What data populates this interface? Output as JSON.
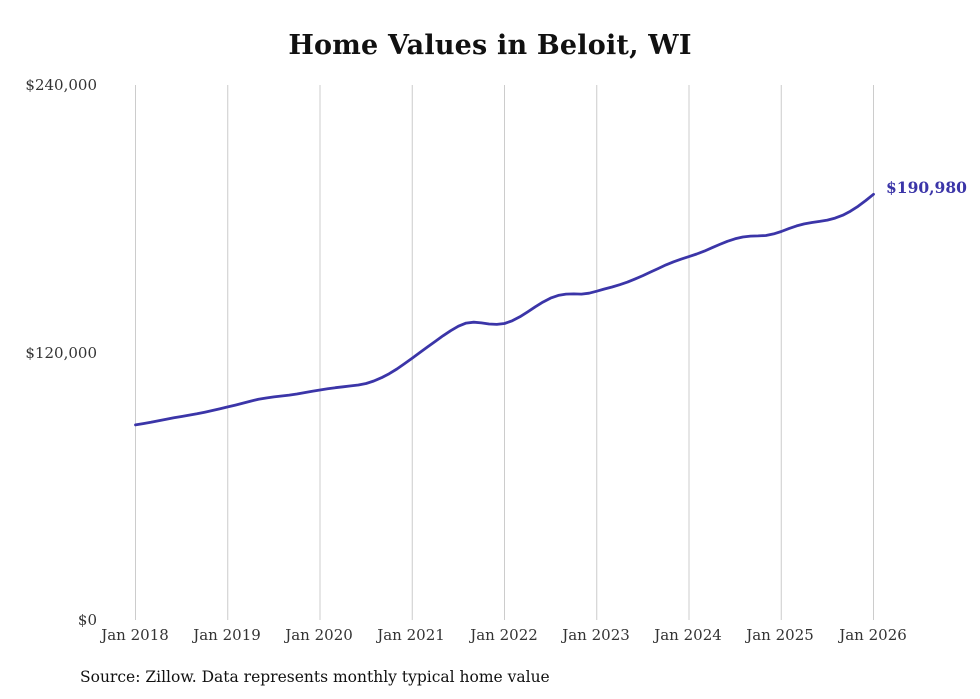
{
  "title": "Home Values in Beloit, WI",
  "source_note": "Source: Zillow. Data represents monthly typical home value",
  "colors": {
    "line": "#3b35a8",
    "grid": "#cccccc",
    "text": "#333333",
    "title": "#111111"
  },
  "chart_data": {
    "type": "line",
    "title": "Home Values in Beloit, WI",
    "xlabel": "",
    "ylabel": "",
    "ylim": [
      0,
      240000
    ],
    "grid": "vertical-only",
    "legend": "none",
    "y_ticks": [
      {
        "value": 240000,
        "label": "$240,000"
      },
      {
        "value": 120000,
        "label": "$120,000"
      },
      {
        "value": 0,
        "label": "$0"
      }
    ],
    "x_ticks": [
      "Jan 2018",
      "Jan 2019",
      "Jan 2020",
      "Jan 2021",
      "Jan 2022",
      "Jan 2023",
      "Jan 2024",
      "Jan 2025",
      "Jan 2026"
    ],
    "end_label": {
      "text": "$190,980",
      "value": 190980
    },
    "series": [
      {
        "name": "Monthly typical home value",
        "color": "#3b35a8",
        "x_start": "Jan 2018",
        "x_interval": "month",
        "values": [
          87500,
          88100,
          88700,
          89400,
          90100,
          90700,
          91300,
          91900,
          92500,
          93200,
          94000,
          94800,
          95600,
          96400,
          97300,
          98200,
          99000,
          99600,
          100100,
          100500,
          100900,
          101400,
          102000,
          102600,
          103200,
          103700,
          104200,
          104600,
          105000,
          105400,
          106100,
          107200,
          108700,
          110500,
          112600,
          115000,
          117500,
          120000,
          122500,
          125000,
          127500,
          129800,
          131800,
          133200,
          133600,
          133300,
          132800,
          132600,
          133000,
          134200,
          136000,
          138200,
          140500,
          142600,
          144400,
          145600,
          146200,
          146300,
          146200,
          146600,
          147500,
          148500,
          149400,
          150400,
          151600,
          153000,
          154500,
          156100,
          157700,
          159300,
          160700,
          161900,
          163000,
          164200,
          165500,
          167000,
          168500,
          169900,
          171000,
          171800,
          172200,
          172300,
          172500,
          173200,
          174300,
          175600,
          176800,
          177700,
          178300,
          178800,
          179400,
          180300,
          181600,
          183400,
          185600,
          188200,
          190980
        ]
      }
    ]
  }
}
